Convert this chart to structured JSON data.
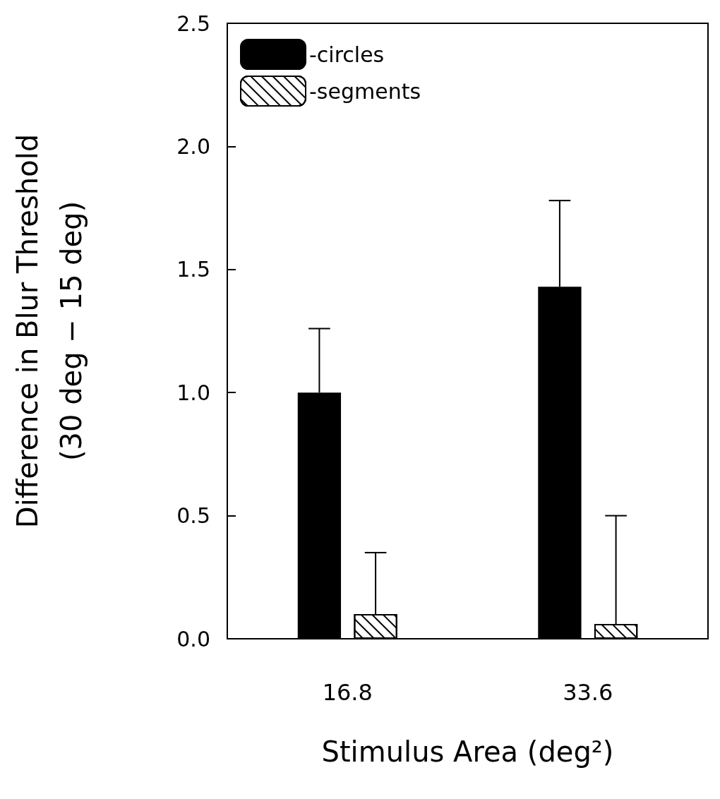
{
  "chart_data": {
    "type": "bar",
    "xlabel": "Stimulus Area (deg²)",
    "ylabel": "Difference in Blur Threshold\n(30 deg − 15 deg)",
    "categories": [
      "16.8",
      "33.6"
    ],
    "series": [
      {
        "name": "-circles",
        "color": "#000000",
        "values": [
          1.0,
          1.43
        ],
        "errors": [
          [
            1.0,
            1.26
          ],
          [
            1.43,
            1.78
          ]
        ]
      },
      {
        "name": "-segments",
        "color": "#ffffff",
        "values": [
          0.1,
          0.06
        ],
        "errors": [
          [
            0.1,
            0.35
          ],
          [
            0.06,
            0.5
          ]
        ]
      }
    ],
    "ylim": [
      0,
      2.5
    ],
    "yticks": [
      {
        "value": 0,
        "label": "0.0"
      },
      {
        "value": 0.5,
        "label": "0.5"
      },
      {
        "value": 1,
        "label": "1.0"
      },
      {
        "value": 1.5,
        "label": "1.5"
      },
      {
        "value": 2,
        "label": "2.0"
      },
      {
        "value": 2.5,
        "label": "2.5"
      }
    ],
    "grid": false,
    "legend": "top left"
  }
}
